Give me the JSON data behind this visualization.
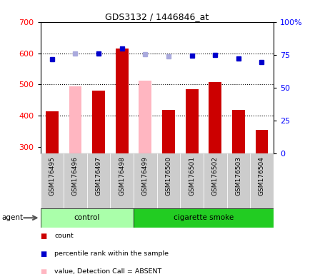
{
  "title": "GDS3132 / 1446846_at",
  "samples": [
    "GSM176495",
    "GSM176496",
    "GSM176497",
    "GSM176498",
    "GSM176499",
    "GSM176500",
    "GSM176501",
    "GSM176502",
    "GSM176503",
    "GSM176504"
  ],
  "ylim_left": [
    280,
    700
  ],
  "ylim_right": [
    0,
    100
  ],
  "yticks_left": [
    300,
    400,
    500,
    600,
    700
  ],
  "yticks_right": [
    0,
    25,
    50,
    75,
    100
  ],
  "yright_labels": [
    "0",
    "25",
    "50",
    "75",
    "100%"
  ],
  "bar_bottom": 280,
  "red_bars_absent": [
    false,
    true,
    false,
    false,
    true,
    false,
    false,
    false,
    false,
    false
  ],
  "red_bars_values": [
    415,
    495,
    480,
    615,
    513,
    420,
    485,
    508,
    418,
    355
  ],
  "blue_absent": [
    false,
    true,
    false,
    false,
    true,
    true,
    false,
    false,
    false,
    false
  ],
  "blue_values": [
    580,
    598,
    598,
    614,
    596,
    590,
    592,
    594,
    583,
    572
  ],
  "control_count": 4,
  "smoke_count": 6,
  "red_color": "#CC0000",
  "pink_color": "#FFB6C1",
  "blue_color": "#0000CC",
  "light_blue_color": "#AAAADD",
  "control_light": "#AAFFAA",
  "control_dark": "#55DD55",
  "smoke_dark": "#22CC22",
  "tick_bg_color": "#CCCCCC",
  "dotted_values": [
    400,
    500,
    600
  ],
  "left_axis_color": "red",
  "right_axis_color": "blue"
}
